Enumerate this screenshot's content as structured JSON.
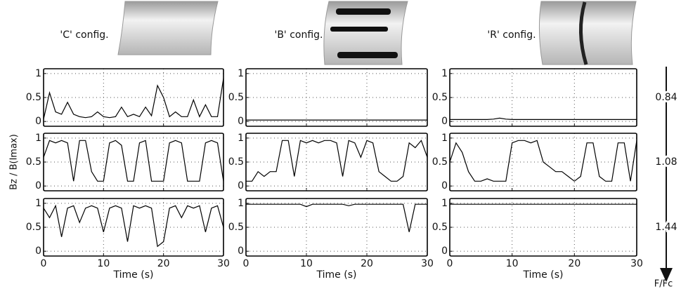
{
  "figure": {
    "row_axis_label": "F/Fc"
  },
  "chart_data": [
    {
      "type": "line",
      "title": "'C' config.",
      "x": [
        0,
        1,
        2,
        3,
        4,
        5,
        6,
        7,
        8,
        9,
        10,
        11,
        12,
        13,
        14,
        15,
        16,
        17,
        18,
        19,
        20,
        21,
        22,
        23,
        24,
        25,
        26,
        27,
        28,
        29,
        30
      ],
      "series": [
        {
          "color": "#000000",
          "values": [
            0.05,
            0.6,
            0.2,
            0.15,
            0.4,
            0.15,
            0.1,
            0.08,
            0.1,
            0.2,
            0.1,
            0.08,
            0.1,
            0.3,
            0.1,
            0.15,
            0.1,
            0.3,
            0.12,
            0.75,
            0.5,
            0.1,
            0.2,
            0.1,
            0.1,
            0.45,
            0.1,
            0.35,
            0.1,
            0.1,
            0.9
          ]
        }
      ],
      "xlim": [
        0,
        30
      ],
      "ylim": [
        -0.1,
        1.1
      ],
      "xticks": [
        0,
        10,
        20,
        30
      ],
      "yticks": [
        0,
        0.5,
        1
      ],
      "grid": true,
      "show_xtick_labels": false
    },
    {
      "type": "line",
      "title": "'B' config.",
      "x": [
        0,
        1,
        2,
        3,
        4,
        5,
        6,
        7,
        8,
        9,
        10,
        11,
        12,
        13,
        14,
        15,
        16,
        17,
        18,
        19,
        20,
        21,
        22,
        23,
        24,
        25,
        26,
        27,
        28,
        29,
        30
      ],
      "series": [
        {
          "color": "#000000",
          "values": [
            0.03,
            0.03,
            0.03,
            0.03,
            0.03,
            0.03,
            0.03,
            0.03,
            0.03,
            0.03,
            0.03,
            0.03,
            0.03,
            0.03,
            0.03,
            0.03,
            0.03,
            0.03,
            0.03,
            0.03,
            0.03,
            0.03,
            0.03,
            0.03,
            0.03,
            0.03,
            0.03,
            0.03,
            0.03,
            0.03,
            0.03
          ]
        }
      ],
      "xlim": [
        0,
        30
      ],
      "ylim": [
        -0.1,
        1.1
      ],
      "xticks": [
        0,
        10,
        20,
        30
      ],
      "yticks": [
        0,
        0.5,
        1
      ],
      "grid": true,
      "show_xtick_labels": false
    },
    {
      "type": "line",
      "title": "'R' config.",
      "annotation": "0.84",
      "x": [
        0,
        1,
        2,
        3,
        4,
        5,
        6,
        7,
        8,
        9,
        10,
        11,
        12,
        13,
        14,
        15,
        16,
        17,
        18,
        19,
        20,
        21,
        22,
        23,
        24,
        25,
        26,
        27,
        28,
        29,
        30
      ],
      "series": [
        {
          "color": "#000000",
          "values": [
            0.04,
            0.04,
            0.04,
            0.04,
            0.04,
            0.04,
            0.04,
            0.05,
            0.07,
            0.05,
            0.04,
            0.04,
            0.04,
            0.04,
            0.04,
            0.04,
            0.04,
            0.04,
            0.04,
            0.04,
            0.04,
            0.04,
            0.04,
            0.04,
            0.04,
            0.04,
            0.04,
            0.04,
            0.04,
            0.04,
            0.04
          ]
        }
      ],
      "xlim": [
        0,
        30
      ],
      "ylim": [
        -0.1,
        1.1
      ],
      "xticks": [
        0,
        10,
        20,
        30
      ],
      "yticks": [
        0,
        0.5,
        1
      ],
      "grid": true,
      "show_xtick_labels": false
    },
    {
      "type": "line",
      "ylabel": "Bz / B(Imax)",
      "x": [
        0,
        1,
        2,
        3,
        4,
        5,
        6,
        7,
        8,
        9,
        10,
        11,
        12,
        13,
        14,
        15,
        16,
        17,
        18,
        19,
        20,
        21,
        22,
        23,
        24,
        25,
        26,
        27,
        28,
        29,
        30
      ],
      "series": [
        {
          "color": "#000000",
          "values": [
            0.6,
            0.95,
            0.9,
            0.95,
            0.9,
            0.1,
            0.95,
            0.95,
            0.3,
            0.1,
            0.1,
            0.9,
            0.95,
            0.85,
            0.1,
            0.1,
            0.9,
            0.95,
            0.1,
            0.1,
            0.1,
            0.9,
            0.95,
            0.9,
            0.1,
            0.1,
            0.1,
            0.9,
            0.95,
            0.9,
            0.1
          ]
        }
      ],
      "xlim": [
        0,
        30
      ],
      "ylim": [
        -0.1,
        1.1
      ],
      "xticks": [
        0,
        10,
        20,
        30
      ],
      "yticks": [
        0,
        0.5,
        1
      ],
      "grid": true,
      "show_xtick_labels": false
    },
    {
      "type": "line",
      "x": [
        0,
        1,
        2,
        3,
        4,
        5,
        6,
        7,
        8,
        9,
        10,
        11,
        12,
        13,
        14,
        15,
        16,
        17,
        18,
        19,
        20,
        21,
        22,
        23,
        24,
        25,
        26,
        27,
        28,
        29,
        30
      ],
      "series": [
        {
          "color": "#000000",
          "values": [
            0.1,
            0.1,
            0.3,
            0.2,
            0.3,
            0.3,
            0.95,
            0.95,
            0.2,
            0.95,
            0.9,
            0.95,
            0.9,
            0.95,
            0.95,
            0.9,
            0.2,
            0.95,
            0.9,
            0.6,
            0.95,
            0.9,
            0.3,
            0.2,
            0.1,
            0.1,
            0.2,
            0.9,
            0.8,
            0.95,
            0.6
          ]
        }
      ],
      "xlim": [
        0,
        30
      ],
      "ylim": [
        -0.1,
        1.1
      ],
      "xticks": [
        0,
        10,
        20,
        30
      ],
      "yticks": [
        0,
        0.5,
        1
      ],
      "grid": true,
      "show_xtick_labels": false
    },
    {
      "type": "line",
      "annotation": "1.08",
      "x": [
        0,
        1,
        2,
        3,
        4,
        5,
        6,
        7,
        8,
        9,
        10,
        11,
        12,
        13,
        14,
        15,
        16,
        17,
        18,
        19,
        20,
        21,
        22,
        23,
        24,
        25,
        26,
        27,
        28,
        29,
        30
      ],
      "series": [
        {
          "color": "#000000",
          "values": [
            0.5,
            0.9,
            0.7,
            0.3,
            0.1,
            0.1,
            0.15,
            0.1,
            0.1,
            0.1,
            0.9,
            0.95,
            0.95,
            0.9,
            0.95,
            0.5,
            0.4,
            0.3,
            0.3,
            0.2,
            0.1,
            0.2,
            0.9,
            0.9,
            0.2,
            0.1,
            0.1,
            0.9,
            0.9,
            0.1,
            0.95
          ]
        }
      ],
      "xlim": [
        0,
        30
      ],
      "ylim": [
        -0.1,
        1.1
      ],
      "xticks": [
        0,
        10,
        20,
        30
      ],
      "yticks": [
        0,
        0.5,
        1
      ],
      "grid": true,
      "show_xtick_labels": false
    },
    {
      "type": "line",
      "xlabel": "Time (s)",
      "x": [
        0,
        1,
        2,
        3,
        4,
        5,
        6,
        7,
        8,
        9,
        10,
        11,
        12,
        13,
        14,
        15,
        16,
        17,
        18,
        19,
        20,
        21,
        22,
        23,
        24,
        25,
        26,
        27,
        28,
        29,
        30
      ],
      "series": [
        {
          "color": "#000000",
          "values": [
            0.9,
            0.7,
            0.95,
            0.3,
            0.9,
            0.95,
            0.6,
            0.9,
            0.95,
            0.9,
            0.4,
            0.9,
            0.95,
            0.9,
            0.2,
            0.95,
            0.9,
            0.95,
            0.9,
            0.1,
            0.2,
            0.9,
            0.95,
            0.7,
            0.95,
            0.9,
            0.95,
            0.4,
            0.9,
            0.95,
            0.5
          ]
        }
      ],
      "xlim": [
        0,
        30
      ],
      "ylim": [
        -0.1,
        1.1
      ],
      "xticks": [
        0,
        10,
        20,
        30
      ],
      "yticks": [
        0,
        0.5,
        1
      ],
      "grid": true,
      "show_xtick_labels": true
    },
    {
      "type": "line",
      "xlabel": "Time (s)",
      "x": [
        0,
        1,
        2,
        3,
        4,
        5,
        6,
        7,
        8,
        9,
        10,
        11,
        12,
        13,
        14,
        15,
        16,
        17,
        18,
        19,
        20,
        21,
        22,
        23,
        24,
        25,
        26,
        27,
        28,
        29,
        30
      ],
      "series": [
        {
          "color": "#000000",
          "values": [
            0.98,
            0.98,
            0.98,
            0.98,
            0.98,
            0.98,
            0.98,
            0.98,
            0.98,
            0.98,
            0.93,
            0.98,
            0.98,
            0.98,
            0.98,
            0.98,
            0.98,
            0.95,
            0.98,
            0.98,
            0.98,
            0.98,
            0.98,
            0.98,
            0.98,
            0.98,
            0.98,
            0.4,
            0.98,
            0.98,
            0.98
          ]
        }
      ],
      "xlim": [
        0,
        30
      ],
      "ylim": [
        -0.1,
        1.1
      ],
      "xticks": [
        0,
        10,
        20,
        30
      ],
      "yticks": [
        0,
        0.5,
        1
      ],
      "grid": true,
      "show_xtick_labels": true
    },
    {
      "type": "line",
      "xlabel": "Time (s)",
      "annotation": "1.44",
      "x": [
        0,
        1,
        2,
        3,
        4,
        5,
        6,
        7,
        8,
        9,
        10,
        11,
        12,
        13,
        14,
        15,
        16,
        17,
        18,
        19,
        20,
        21,
        22,
        23,
        24,
        25,
        26,
        27,
        28,
        29,
        30
      ],
      "series": [
        {
          "color": "#000000",
          "values": [
            0.98,
            0.98,
            0.98,
            0.98,
            0.98,
            0.98,
            0.98,
            0.98,
            0.98,
            0.98,
            0.98,
            0.98,
            0.98,
            0.98,
            0.98,
            0.98,
            0.98,
            0.98,
            0.98,
            0.98,
            0.98,
            0.98,
            0.98,
            0.98,
            0.98,
            0.98,
            0.98,
            0.98,
            0.98,
            0.98,
            0.98
          ]
        }
      ],
      "xlim": [
        0,
        30
      ],
      "ylim": [
        -0.1,
        1.1
      ],
      "xticks": [
        0,
        10,
        20,
        30
      ],
      "yticks": [
        0,
        0.5,
        1
      ],
      "grid": true,
      "show_xtick_labels": true
    }
  ]
}
